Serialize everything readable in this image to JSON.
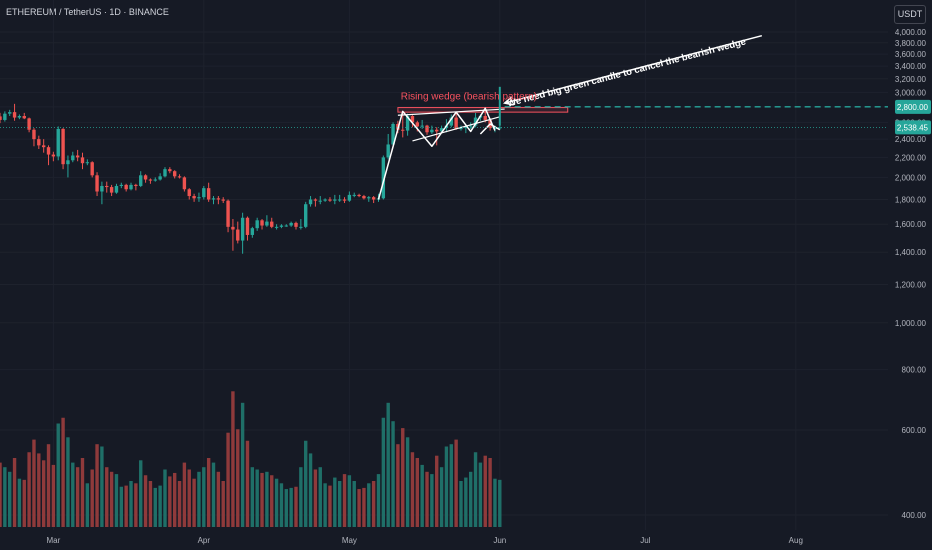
{
  "header": {
    "symbol": "ETHEREUM / TetherUS · 1D · BINANCE",
    "currency": "USDT"
  },
  "colors": {
    "background": "#161a25",
    "grid": "#1e222d",
    "axis_text": "#b2b5be",
    "up": "#26a69a",
    "down": "#ef5350",
    "vol_up": "#1f6f68",
    "vol_down": "#8f3a3b",
    "drawing": "#ffffff",
    "annotation_red": "#f7525f",
    "resistance_box": "#f7525f",
    "horizontal_line": "#26a69a"
  },
  "chart_data": {
    "type": "candlestick",
    "y_axis": {
      "min": 400,
      "max": 4000,
      "scale": "log",
      "ticks": [
        "4,000.00",
        "3,800.00",
        "3,600.00",
        "3,400.00",
        "3,200.00",
        "3,000.00",
        "2,800.00",
        "2,600.00",
        "2,400.00",
        "2,200.00",
        "2,000.00",
        "1,800.00",
        "1,600.00",
        "1,400.00",
        "1,200.00",
        "1,000.00",
        "800.00",
        "600.00",
        "400.00"
      ],
      "tick_values": [
        4000,
        3800,
        3600,
        3400,
        3200,
        3000,
        2800,
        2600,
        2400,
        2200,
        2000,
        1800,
        1600,
        1400,
        1200,
        1000,
        800,
        600,
        400
      ]
    },
    "x_axis": {
      "labels": [
        "Mar",
        "Apr",
        "May",
        "Jun",
        "Jul",
        "Aug"
      ],
      "label_dates": [
        "2025-03-01",
        "2025-04-01",
        "2025-05-01",
        "2025-06-01",
        "2025-07-01",
        "2025-08-01"
      ],
      "start": "2025-02-18",
      "end": "2025-08-20"
    },
    "price_labels": [
      {
        "value": 2800.0,
        "text": "2,800.00",
        "kind": "line"
      },
      {
        "value": 2538.45,
        "text": "2,538.45",
        "kind": "last"
      }
    ],
    "annotations": {
      "wedge_label": "Rising wedge (bearish pattern)",
      "arrow_label": "We need big green candle to cancel the bearish wedge"
    },
    "candles": [
      {
        "date": "2025-02-18",
        "o": 2675,
        "h": 2720,
        "l": 2590,
        "c": 2630,
        "v": 560
      },
      {
        "date": "2025-02-19",
        "o": 2630,
        "h": 2740,
        "l": 2610,
        "c": 2710,
        "v": 520
      },
      {
        "date": "2025-02-20",
        "o": 2710,
        "h": 2760,
        "l": 2680,
        "c": 2730,
        "v": 480
      },
      {
        "date": "2025-02-21",
        "o": 2730,
        "h": 2840,
        "l": 2620,
        "c": 2660,
        "v": 600
      },
      {
        "date": "2025-02-22",
        "o": 2660,
        "h": 2700,
        "l": 2640,
        "c": 2680,
        "v": 420
      },
      {
        "date": "2025-02-23",
        "o": 2680,
        "h": 2720,
        "l": 2640,
        "c": 2650,
        "v": 410
      },
      {
        "date": "2025-02-24",
        "o": 2650,
        "h": 2660,
        "l": 2480,
        "c": 2510,
        "v": 650
      },
      {
        "date": "2025-02-25",
        "o": 2510,
        "h": 2530,
        "l": 2320,
        "c": 2400,
        "v": 760
      },
      {
        "date": "2025-02-26",
        "o": 2400,
        "h": 2440,
        "l": 2290,
        "c": 2330,
        "v": 640
      },
      {
        "date": "2025-02-27",
        "o": 2330,
        "h": 2400,
        "l": 2250,
        "c": 2310,
        "v": 580
      },
      {
        "date": "2025-02-28",
        "o": 2310,
        "h": 2330,
        "l": 2120,
        "c": 2230,
        "v": 720
      },
      {
        "date": "2025-03-01",
        "o": 2230,
        "h": 2260,
        "l": 2160,
        "c": 2210,
        "v": 540
      },
      {
        "date": "2025-03-02",
        "o": 2210,
        "h": 2550,
        "l": 2170,
        "c": 2520,
        "v": 900
      },
      {
        "date": "2025-03-03",
        "o": 2520,
        "h": 2530,
        "l": 2080,
        "c": 2130,
        "v": 950
      },
      {
        "date": "2025-03-04",
        "o": 2130,
        "h": 2220,
        "l": 2000,
        "c": 2170,
        "v": 780
      },
      {
        "date": "2025-03-05",
        "o": 2170,
        "h": 2260,
        "l": 2150,
        "c": 2220,
        "v": 560
      },
      {
        "date": "2025-03-06",
        "o": 2220,
        "h": 2280,
        "l": 2160,
        "c": 2200,
        "v": 520
      },
      {
        "date": "2025-03-07",
        "o": 2200,
        "h": 2250,
        "l": 2080,
        "c": 2140,
        "v": 600
      },
      {
        "date": "2025-03-08",
        "o": 2140,
        "h": 2180,
        "l": 2120,
        "c": 2150,
        "v": 380
      },
      {
        "date": "2025-03-09",
        "o": 2150,
        "h": 2160,
        "l": 2000,
        "c": 2020,
        "v": 500
      },
      {
        "date": "2025-03-10",
        "o": 2020,
        "h": 2050,
        "l": 1830,
        "c": 1870,
        "v": 720
      },
      {
        "date": "2025-03-11",
        "o": 1870,
        "h": 1960,
        "l": 1760,
        "c": 1920,
        "v": 700
      },
      {
        "date": "2025-03-12",
        "o": 1920,
        "h": 1960,
        "l": 1860,
        "c": 1910,
        "v": 520
      },
      {
        "date": "2025-03-13",
        "o": 1910,
        "h": 1930,
        "l": 1830,
        "c": 1860,
        "v": 480
      },
      {
        "date": "2025-03-14",
        "o": 1860,
        "h": 1940,
        "l": 1850,
        "c": 1920,
        "v": 460
      },
      {
        "date": "2025-03-15",
        "o": 1920,
        "h": 1950,
        "l": 1900,
        "c": 1930,
        "v": 350
      },
      {
        "date": "2025-03-16",
        "o": 1930,
        "h": 1940,
        "l": 1870,
        "c": 1890,
        "v": 360
      },
      {
        "date": "2025-03-17",
        "o": 1890,
        "h": 1950,
        "l": 1880,
        "c": 1930,
        "v": 400
      },
      {
        "date": "2025-03-18",
        "o": 1930,
        "h": 1940,
        "l": 1880,
        "c": 1920,
        "v": 380
      },
      {
        "date": "2025-03-19",
        "o": 1920,
        "h": 2060,
        "l": 1910,
        "c": 2020,
        "v": 580
      },
      {
        "date": "2025-03-20",
        "o": 2020,
        "h": 2030,
        "l": 1950,
        "c": 1980,
        "v": 450
      },
      {
        "date": "2025-03-21",
        "o": 1980,
        "h": 1990,
        "l": 1940,
        "c": 1970,
        "v": 400
      },
      {
        "date": "2025-03-22",
        "o": 1970,
        "h": 2000,
        "l": 1960,
        "c": 1980,
        "v": 340
      },
      {
        "date": "2025-03-23",
        "o": 1980,
        "h": 2040,
        "l": 1970,
        "c": 2010,
        "v": 360
      },
      {
        "date": "2025-03-24",
        "o": 2010,
        "h": 2100,
        "l": 2000,
        "c": 2080,
        "v": 500
      },
      {
        "date": "2025-03-25",
        "o": 2080,
        "h": 2100,
        "l": 2040,
        "c": 2060,
        "v": 440
      },
      {
        "date": "2025-03-26",
        "o": 2060,
        "h": 2070,
        "l": 1990,
        "c": 2010,
        "v": 470
      },
      {
        "date": "2025-03-27",
        "o": 2010,
        "h": 2030,
        "l": 1990,
        "c": 2000,
        "v": 400
      },
      {
        "date": "2025-03-28",
        "o": 2000,
        "h": 2010,
        "l": 1870,
        "c": 1890,
        "v": 560
      },
      {
        "date": "2025-03-29",
        "o": 1890,
        "h": 1900,
        "l": 1800,
        "c": 1830,
        "v": 500
      },
      {
        "date": "2025-03-30",
        "o": 1830,
        "h": 1850,
        "l": 1780,
        "c": 1810,
        "v": 420
      },
      {
        "date": "2025-03-31",
        "o": 1810,
        "h": 1860,
        "l": 1780,
        "c": 1820,
        "v": 480
      },
      {
        "date": "2025-04-01",
        "o": 1820,
        "h": 1920,
        "l": 1800,
        "c": 1900,
        "v": 520
      },
      {
        "date": "2025-04-02",
        "o": 1900,
        "h": 1950,
        "l": 1780,
        "c": 1800,
        "v": 600
      },
      {
        "date": "2025-04-03",
        "o": 1800,
        "h": 1830,
        "l": 1760,
        "c": 1810,
        "v": 560
      },
      {
        "date": "2025-04-04",
        "o": 1810,
        "h": 1830,
        "l": 1760,
        "c": 1800,
        "v": 480
      },
      {
        "date": "2025-04-05",
        "o": 1800,
        "h": 1820,
        "l": 1770,
        "c": 1790,
        "v": 400
      },
      {
        "date": "2025-04-06",
        "o": 1790,
        "h": 1800,
        "l": 1540,
        "c": 1580,
        "v": 820
      },
      {
        "date": "2025-04-07",
        "o": 1580,
        "h": 1640,
        "l": 1410,
        "c": 1560,
        "v": 1180
      },
      {
        "date": "2025-04-08",
        "o": 1560,
        "h": 1620,
        "l": 1460,
        "c": 1480,
        "v": 850
      },
      {
        "date": "2025-04-09",
        "o": 1480,
        "h": 1690,
        "l": 1390,
        "c": 1650,
        "v": 1080
      },
      {
        "date": "2025-04-10",
        "o": 1650,
        "h": 1660,
        "l": 1480,
        "c": 1520,
        "v": 750
      },
      {
        "date": "2025-04-11",
        "o": 1520,
        "h": 1580,
        "l": 1500,
        "c": 1570,
        "v": 520
      },
      {
        "date": "2025-04-12",
        "o": 1570,
        "h": 1650,
        "l": 1550,
        "c": 1630,
        "v": 500
      },
      {
        "date": "2025-04-13",
        "o": 1630,
        "h": 1640,
        "l": 1560,
        "c": 1590,
        "v": 470
      },
      {
        "date": "2025-04-14",
        "o": 1590,
        "h": 1670,
        "l": 1580,
        "c": 1620,
        "v": 480
      },
      {
        "date": "2025-04-15",
        "o": 1620,
        "h": 1650,
        "l": 1570,
        "c": 1580,
        "v": 450
      },
      {
        "date": "2025-04-16",
        "o": 1580,
        "h": 1600,
        "l": 1560,
        "c": 1580,
        "v": 420
      },
      {
        "date": "2025-04-17",
        "o": 1580,
        "h": 1600,
        "l": 1570,
        "c": 1590,
        "v": 380
      },
      {
        "date": "2025-04-18",
        "o": 1590,
        "h": 1600,
        "l": 1580,
        "c": 1590,
        "v": 330
      },
      {
        "date": "2025-04-19",
        "o": 1590,
        "h": 1620,
        "l": 1580,
        "c": 1610,
        "v": 340
      },
      {
        "date": "2025-04-20",
        "o": 1610,
        "h": 1620,
        "l": 1560,
        "c": 1580,
        "v": 350
      },
      {
        "date": "2025-04-21",
        "o": 1580,
        "h": 1640,
        "l": 1560,
        "c": 1580,
        "v": 520
      },
      {
        "date": "2025-04-22",
        "o": 1580,
        "h": 1780,
        "l": 1570,
        "c": 1760,
        "v": 750
      },
      {
        "date": "2025-04-23",
        "o": 1760,
        "h": 1830,
        "l": 1740,
        "c": 1800,
        "v": 640
      },
      {
        "date": "2025-04-24",
        "o": 1800,
        "h": 1810,
        "l": 1740,
        "c": 1790,
        "v": 500
      },
      {
        "date": "2025-04-25",
        "o": 1790,
        "h": 1830,
        "l": 1760,
        "c": 1790,
        "v": 520
      },
      {
        "date": "2025-04-26",
        "o": 1790,
        "h": 1810,
        "l": 1780,
        "c": 1800,
        "v": 380
      },
      {
        "date": "2025-04-27",
        "o": 1800,
        "h": 1820,
        "l": 1780,
        "c": 1790,
        "v": 360
      },
      {
        "date": "2025-04-28",
        "o": 1790,
        "h": 1840,
        "l": 1760,
        "c": 1800,
        "v": 430
      },
      {
        "date": "2025-04-29",
        "o": 1800,
        "h": 1840,
        "l": 1780,
        "c": 1800,
        "v": 400
      },
      {
        "date": "2025-04-30",
        "o": 1800,
        "h": 1820,
        "l": 1770,
        "c": 1790,
        "v": 460
      },
      {
        "date": "2025-05-01",
        "o": 1790,
        "h": 1870,
        "l": 1780,
        "c": 1840,
        "v": 450
      },
      {
        "date": "2025-05-02",
        "o": 1840,
        "h": 1860,
        "l": 1820,
        "c": 1840,
        "v": 400
      },
      {
        "date": "2025-05-03",
        "o": 1840,
        "h": 1850,
        "l": 1820,
        "c": 1830,
        "v": 330
      },
      {
        "date": "2025-05-04",
        "o": 1830,
        "h": 1840,
        "l": 1800,
        "c": 1810,
        "v": 340
      },
      {
        "date": "2025-05-05",
        "o": 1810,
        "h": 1830,
        "l": 1780,
        "c": 1820,
        "v": 380
      },
      {
        "date": "2025-05-06",
        "o": 1820,
        "h": 1830,
        "l": 1770,
        "c": 1800,
        "v": 400
      },
      {
        "date": "2025-05-07",
        "o": 1800,
        "h": 1850,
        "l": 1780,
        "c": 1810,
        "v": 460
      },
      {
        "date": "2025-05-08",
        "o": 1810,
        "h": 2220,
        "l": 1800,
        "c": 2200,
        "v": 950
      },
      {
        "date": "2025-05-09",
        "o": 2200,
        "h": 2460,
        "l": 2180,
        "c": 2340,
        "v": 1080
      },
      {
        "date": "2025-05-10",
        "o": 2340,
        "h": 2600,
        "l": 2330,
        "c": 2580,
        "v": 920
      },
      {
        "date": "2025-05-11",
        "o": 2580,
        "h": 2620,
        "l": 2470,
        "c": 2510,
        "v": 720
      },
      {
        "date": "2025-05-12",
        "o": 2510,
        "h": 2740,
        "l": 2420,
        "c": 2500,
        "v": 860
      },
      {
        "date": "2025-05-13",
        "o": 2500,
        "h": 2710,
        "l": 2440,
        "c": 2680,
        "v": 780
      },
      {
        "date": "2025-05-14",
        "o": 2680,
        "h": 2690,
        "l": 2540,
        "c": 2600,
        "v": 650
      },
      {
        "date": "2025-05-15",
        "o": 2600,
        "h": 2620,
        "l": 2490,
        "c": 2550,
        "v": 600
      },
      {
        "date": "2025-05-16",
        "o": 2550,
        "h": 2630,
        "l": 2520,
        "c": 2560,
        "v": 540
      },
      {
        "date": "2025-05-17",
        "o": 2560,
        "h": 2570,
        "l": 2450,
        "c": 2480,
        "v": 480
      },
      {
        "date": "2025-05-18",
        "o": 2480,
        "h": 2560,
        "l": 2460,
        "c": 2510,
        "v": 460
      },
      {
        "date": "2025-05-19",
        "o": 2510,
        "h": 2540,
        "l": 2330,
        "c": 2490,
        "v": 620
      },
      {
        "date": "2025-05-20",
        "o": 2490,
        "h": 2560,
        "l": 2470,
        "c": 2530,
        "v": 520
      },
      {
        "date": "2025-05-21",
        "o": 2530,
        "h": 2640,
        "l": 2480,
        "c": 2560,
        "v": 700
      },
      {
        "date": "2025-05-22",
        "o": 2560,
        "h": 2700,
        "l": 2540,
        "c": 2660,
        "v": 720
      },
      {
        "date": "2025-05-23",
        "o": 2660,
        "h": 2730,
        "l": 2510,
        "c": 2520,
        "v": 760
      },
      {
        "date": "2025-05-24",
        "o": 2520,
        "h": 2560,
        "l": 2500,
        "c": 2530,
        "v": 400
      },
      {
        "date": "2025-05-25",
        "o": 2530,
        "h": 2560,
        "l": 2470,
        "c": 2550,
        "v": 430
      },
      {
        "date": "2025-05-26",
        "o": 2550,
        "h": 2600,
        "l": 2520,
        "c": 2560,
        "v": 480
      },
      {
        "date": "2025-05-27",
        "o": 2560,
        "h": 2720,
        "l": 2540,
        "c": 2660,
        "v": 650
      },
      {
        "date": "2025-05-28",
        "o": 2660,
        "h": 2700,
        "l": 2620,
        "c": 2680,
        "v": 560
      },
      {
        "date": "2025-05-29",
        "o": 2680,
        "h": 2780,
        "l": 2600,
        "c": 2630,
        "v": 620
      },
      {
        "date": "2025-05-30",
        "o": 2630,
        "h": 2650,
        "l": 2500,
        "c": 2530,
        "v": 600
      },
      {
        "date": "2025-05-31",
        "o": 2530,
        "h": 2560,
        "l": 2480,
        "c": 2530,
        "v": 420
      },
      {
        "date": "2025-06-01",
        "o": 2530,
        "h": 2560,
        "l": 2510,
        "c": 2538.45,
        "v": 410
      }
    ],
    "drawings": {
      "resistance_box": {
        "x1": "2025-05-11",
        "x2": "2025-06-15",
        "y1": 2730,
        "y2": 2790
      },
      "horizontal_line": {
        "value": 2800,
        "x1": "2025-06-02"
      },
      "wedge_upper": [
        [
          "2025-05-11",
          "2025-06-02"
        ],
        [
          2690,
          2770
        ]
      ],
      "wedge_lower": [
        [
          "2025-05-14",
          "2025-06-01"
        ],
        [
          2380,
          2670
        ]
      ],
      "zigzag": [
        [
          "2025-05-07",
          1800
        ],
        [
          "2025-05-12",
          2740
        ],
        [
          "2025-05-18",
          2320
        ],
        [
          "2025-05-23",
          2730
        ],
        [
          "2025-05-26",
          2490
        ],
        [
          "2025-05-29",
          2780
        ],
        [
          "2025-05-31",
          2500
        ]
      ],
      "small_zigzag": [
        [
          "2025-05-28",
          2460
        ],
        [
          "2025-05-30",
          2580
        ],
        [
          "2025-06-01",
          2510
        ]
      ],
      "vertical_line": {
        "date": "2025-06-01",
        "y1": 2560,
        "y2": 3080
      },
      "arrow": {
        "from": [
          "2025-07-25",
          3930
        ],
        "to": [
          "2025-06-02",
          2850
        ]
      }
    }
  }
}
